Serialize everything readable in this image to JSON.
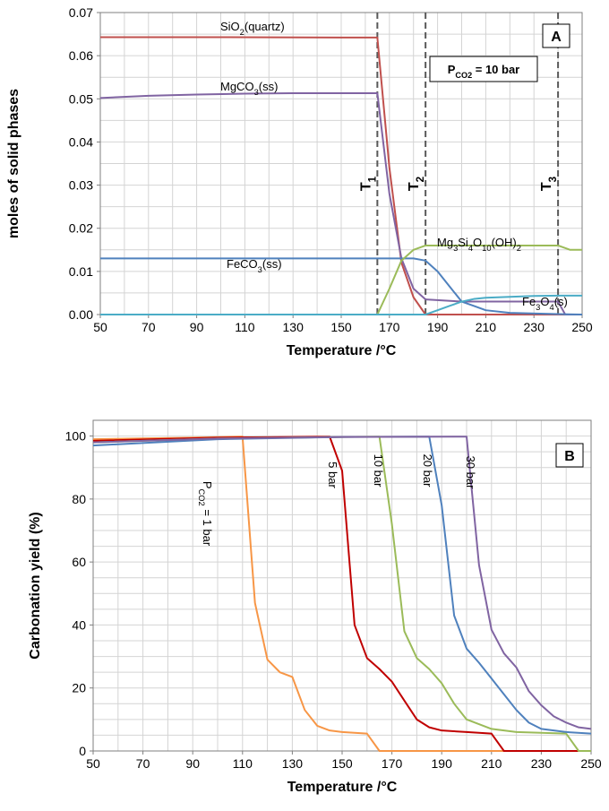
{
  "chart_data": [
    {
      "type": "line",
      "panel_label": "A",
      "xlabel": "Temperature /°C",
      "ylabel": "moles of solid phases",
      "xlim": [
        50,
        250
      ],
      "ylim": [
        0,
        0.07
      ],
      "xticks": [
        50,
        70,
        90,
        110,
        130,
        150,
        170,
        190,
        210,
        230,
        250
      ],
      "yticks": [
        0,
        0.01,
        0.02,
        0.03,
        0.04,
        0.05,
        0.06,
        0.07
      ],
      "ytick_labels": [
        "0.00",
        "0.01",
        "0.02",
        "0.03",
        "0.04",
        "0.05",
        "0.06",
        "0.07"
      ],
      "grid": true,
      "condition": {
        "prefix": "P",
        "sub": "CO2",
        "suffix": " = 10 bar"
      },
      "vlines": [
        {
          "x": 165,
          "label": "T",
          "sub": "1"
        },
        {
          "x": 185,
          "label": "T",
          "sub": "2"
        },
        {
          "x": 240,
          "label": "T",
          "sub": "3"
        }
      ],
      "series": [
        {
          "name": "SiO2(quartz)",
          "label_parts": [
            [
              "SiO",
              ""
            ],
            [
              "2",
              "sub"
            ],
            [
              "(quartz)",
              ""
            ]
          ],
          "color": "#c0504d",
          "x": [
            50,
            100,
            150,
            165,
            170,
            175,
            180,
            185,
            250
          ],
          "y": [
            0.0643,
            0.0643,
            0.0642,
            0.0642,
            0.034,
            0.012,
            0.004,
            0.0,
            0.0
          ]
        },
        {
          "name": "MgCO3(ss)",
          "label_parts": [
            [
              "MgCO",
              ""
            ],
            [
              "3",
              "sub"
            ],
            [
              "(ss)",
              ""
            ]
          ],
          "color": "#8064a2",
          "x": [
            50,
            70,
            90,
            110,
            130,
            150,
            165,
            170,
            175,
            180,
            185,
            200,
            240,
            243,
            250
          ],
          "y": [
            0.0502,
            0.0507,
            0.051,
            0.0512,
            0.0513,
            0.0513,
            0.0513,
            0.028,
            0.013,
            0.006,
            0.0035,
            0.003,
            0.003,
            0.0,
            0.0
          ]
        },
        {
          "name": "FeCO3(ss)",
          "label_parts": [
            [
              "FeCO",
              ""
            ],
            [
              "3",
              "sub"
            ],
            [
              "(ss)",
              ""
            ]
          ],
          "color": "#4f81bd",
          "x": [
            50,
            165,
            180,
            185,
            190,
            195,
            200,
            205,
            210,
            220,
            240,
            250
          ],
          "y": [
            0.013,
            0.013,
            0.013,
            0.0125,
            0.01,
            0.0065,
            0.003,
            0.002,
            0.001,
            0.0004,
            0.0001,
            0.0
          ]
        },
        {
          "name": "Mg3Si4O10(OH)2",
          "label_parts": [
            [
              "Mg",
              ""
            ],
            [
              "3",
              "sub"
            ],
            [
              "Si",
              ""
            ],
            [
              "4",
              "sub"
            ],
            [
              "O",
              ""
            ],
            [
              "10",
              "sub"
            ],
            [
              "(OH)",
              ""
            ],
            [
              "2",
              "sub"
            ]
          ],
          "color": "#9bbb59",
          "x": [
            50,
            165,
            170,
            175,
            180,
            185,
            190,
            200,
            240,
            245,
            250
          ],
          "y": [
            0.0,
            0.0,
            0.006,
            0.0125,
            0.015,
            0.016,
            0.016,
            0.016,
            0.016,
            0.015,
            0.015
          ]
        },
        {
          "name": "Fe3O4(s)",
          "label_parts": [
            [
              "Fe",
              ""
            ],
            [
              "3",
              "sub"
            ],
            [
              "O",
              ""
            ],
            [
              "4",
              "sub"
            ],
            [
              "(s)",
              ""
            ]
          ],
          "color": "#4bacc6",
          "x": [
            50,
            185,
            190,
            195,
            200,
            205,
            210,
            220,
            230,
            240,
            250
          ],
          "y": [
            0.0,
            0.0,
            0.001,
            0.002,
            0.003,
            0.0036,
            0.0039,
            0.0041,
            0.0043,
            0.0044,
            0.0044
          ]
        }
      ]
    },
    {
      "type": "line",
      "panel_label": "B",
      "xlabel": "Temperature /°C",
      "ylabel": "Carbonation yield (%)",
      "xlim": [
        50,
        250
      ],
      "ylim": [
        0,
        105
      ],
      "xticks": [
        50,
        70,
        90,
        110,
        130,
        150,
        170,
        190,
        210,
        230,
        250
      ],
      "yticks": [
        0,
        20,
        40,
        60,
        80,
        100
      ],
      "grid": true,
      "series": [
        {
          "name": "1 bar",
          "label_parts": [
            [
              "P",
              ""
            ],
            [
              "CO2",
              "sub"
            ],
            [
              " = 1 bar",
              ""
            ]
          ],
          "color": "#f79646",
          "x": [
            50,
            90,
            110,
            115,
            120,
            125,
            130,
            135,
            140,
            145,
            150,
            160,
            165,
            250
          ],
          "y": [
            99,
            99.5,
            99.8,
            47,
            29,
            25,
            23.5,
            13,
            8,
            6.5,
            6,
            5.5,
            0,
            0
          ]
        },
        {
          "name": "5 bar",
          "label_parts": [
            [
              "5 bar",
              ""
            ]
          ],
          "color": "#c00000",
          "x": [
            50,
            100,
            145,
            150,
            155,
            160,
            165,
            170,
            175,
            180,
            185,
            190,
            200,
            210,
            215,
            250
          ],
          "y": [
            98.5,
            99.5,
            99.8,
            89,
            40,
            29.5,
            26,
            22,
            16,
            10,
            7.5,
            6.5,
            6,
            5.5,
            0,
            0
          ]
        },
        {
          "name": "10 bar",
          "label_parts": [
            [
              "10 bar",
              ""
            ]
          ],
          "color": "#9bbb59",
          "x": [
            50,
            100,
            150,
            165,
            170,
            175,
            180,
            185,
            190,
            195,
            200,
            210,
            220,
            240,
            245,
            250
          ],
          "y": [
            98,
            99.2,
            99.7,
            99.8,
            72,
            38,
            29.5,
            26,
            21.5,
            15,
            10,
            7,
            6,
            5.5,
            0,
            0
          ]
        },
        {
          "name": "20 bar",
          "label_parts": [
            [
              "20 bar",
              ""
            ]
          ],
          "color": "#4f81bd",
          "x": [
            50,
            100,
            150,
            185,
            190,
            195,
            200,
            205,
            210,
            215,
            220,
            225,
            230,
            240,
            250
          ],
          "y": [
            97,
            99,
            99.7,
            99.8,
            78,
            43,
            32.5,
            28,
            23,
            18,
            13,
            9,
            7,
            6,
            5.5
          ]
        },
        {
          "name": "30 bar",
          "label_parts": [
            [
              "30 bar",
              ""
            ]
          ],
          "color": "#8064a2",
          "x": [
            50,
            100,
            150,
            200,
            205,
            210,
            215,
            220,
            225,
            230,
            235,
            240,
            245,
            250
          ],
          "y": [
            98,
            99.2,
            99.7,
            99.8,
            59,
            38.5,
            31,
            26.5,
            19,
            14.5,
            11,
            9,
            7.5,
            7
          ]
        }
      ]
    }
  ]
}
